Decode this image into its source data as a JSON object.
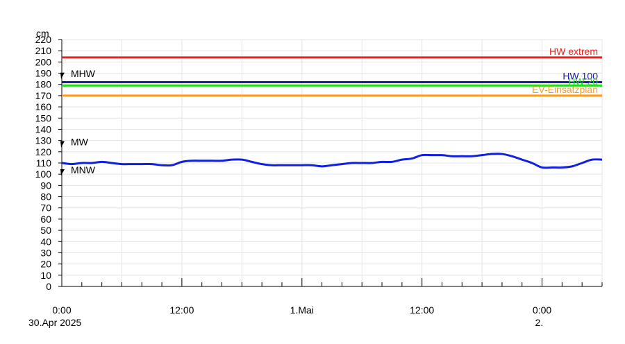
{
  "chart_data": {
    "type": "line",
    "y_unit_label": "cm",
    "ylim": [
      0,
      220
    ],
    "y_ticks": [
      0,
      10,
      20,
      30,
      40,
      50,
      60,
      70,
      80,
      90,
      100,
      110,
      120,
      130,
      140,
      150,
      160,
      170,
      180,
      190,
      200,
      210,
      220
    ],
    "x_range_hours": [
      0,
      54
    ],
    "x_tick_labels": [
      {
        "hour": 0,
        "line1": "0:00",
        "line2": "30.Apr 2025"
      },
      {
        "hour": 12,
        "line1": "12:00",
        "line2": ""
      },
      {
        "hour": 24,
        "line1": "1.Mai",
        "line2": ""
      },
      {
        "hour": 36,
        "line1": "12:00",
        "line2": ""
      },
      {
        "hour": 48,
        "line1": "0:00",
        "line2": "2."
      }
    ],
    "grid": true,
    "reference_lines": [
      {
        "name": "HW extrem",
        "value": 204,
        "color": "#e8201e"
      },
      {
        "name": "HW 100",
        "value": 182,
        "color": "#1a1aa0"
      },
      {
        "name": "HW 20",
        "value": 179,
        "color": "#22dd22"
      },
      {
        "name": "EV-Einsatzplan",
        "value": 170,
        "color": "#ff9a1a"
      }
    ],
    "markers": [
      {
        "name": "MHW",
        "value": 188
      },
      {
        "name": "MW",
        "value": 127
      },
      {
        "name": "MNW",
        "value": 102
      }
    ],
    "series": [
      {
        "color": "#1020e0",
        "x": [
          0,
          1,
          2,
          3,
          4,
          5,
          6,
          7,
          8,
          9,
          10,
          11,
          12,
          13,
          14,
          15,
          16,
          17,
          18,
          19,
          20,
          21,
          22,
          23,
          24,
          25,
          26,
          27,
          28,
          29,
          30,
          31,
          32,
          33,
          34,
          35,
          36,
          37,
          38,
          39,
          40,
          41,
          42,
          43,
          44,
          45,
          46,
          47,
          48,
          49,
          50,
          51,
          52,
          53,
          54
        ],
        "values": [
          110,
          109,
          110,
          110,
          111,
          110,
          109,
          109,
          109,
          109,
          108,
          108,
          111,
          112,
          112,
          112,
          112,
          113,
          113,
          111,
          109,
          108,
          108,
          108,
          108,
          108,
          107,
          108,
          109,
          110,
          110,
          110,
          111,
          111,
          113,
          114,
          117,
          117,
          117,
          116,
          116,
          116,
          117,
          118,
          118,
          116,
          113,
          110,
          106,
          106,
          106,
          107,
          110,
          113,
          113
        ]
      }
    ]
  }
}
